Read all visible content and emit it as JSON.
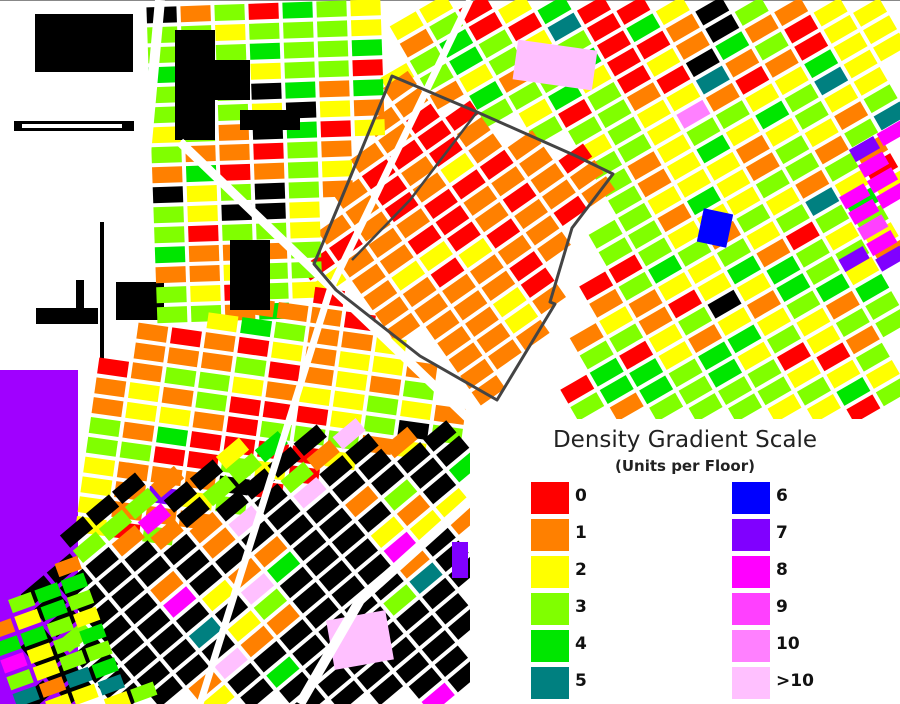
{
  "legend": {
    "title": "Density Gradient Scale",
    "subtitle": "(Units per Floor)",
    "items": [
      {
        "label": "0",
        "color": "#ff0000"
      },
      {
        "label": "1",
        "color": "#ff8000"
      },
      {
        "label": "2",
        "color": "#ffff00"
      },
      {
        "label": "3",
        "color": "#80ff00"
      },
      {
        "label": "4",
        "color": "#00e600"
      },
      {
        "label": "5",
        "color": "#008080"
      },
      {
        "label": "6",
        "color": "#0000ff"
      },
      {
        "label": "7",
        "color": "#8000ff"
      },
      {
        "label": "8",
        "color": "#ff00ff"
      },
      {
        "label": "9",
        "color": "#ff40ff"
      },
      {
        "label": "10",
        "color": "#ff80ff"
      },
      {
        "label": ">10",
        "color": "#ffc0ff"
      }
    ]
  },
  "map_colors": {
    "unknown": "#000000",
    "street": "#ffffff",
    "boundary": "#444444"
  }
}
